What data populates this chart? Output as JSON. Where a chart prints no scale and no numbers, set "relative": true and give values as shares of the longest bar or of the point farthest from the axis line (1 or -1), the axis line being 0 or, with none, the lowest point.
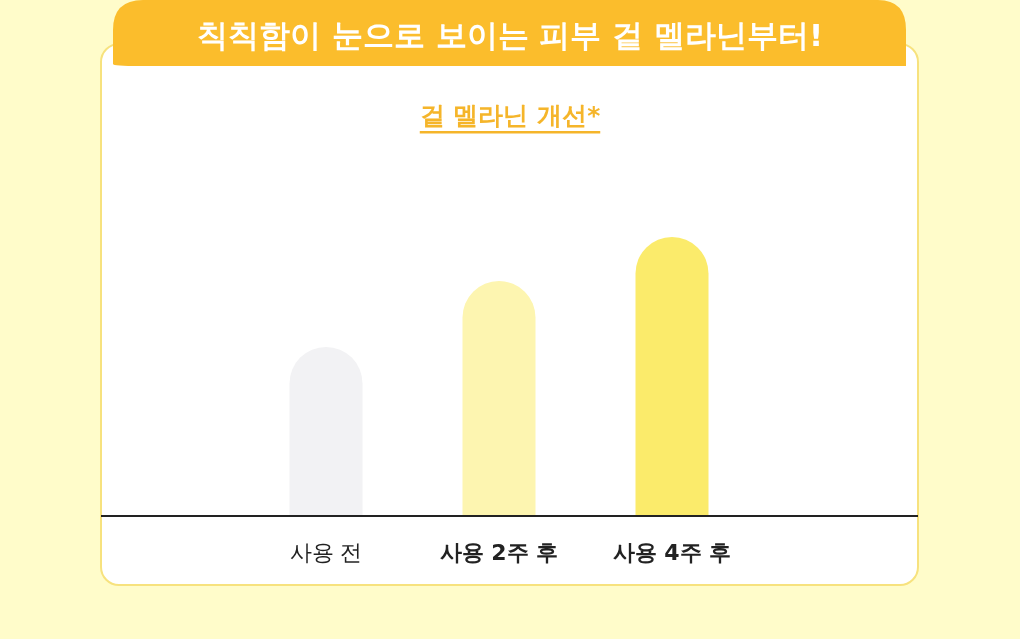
{
  "chart_data": {
    "type": "bar",
    "title": "칙칙함이 눈으로 보이는 피부 겉 멜라닌부터!",
    "subtitle": "겉 멜라닌 개선*",
    "categories": [
      "사용 전",
      "사용 2주 후",
      "사용 4주 후"
    ],
    "values": [
      0.606,
      0.842,
      1
    ],
    "colors": [
      "#f2f2f4",
      "#fdf5b0",
      "#fbeb6b"
    ],
    "relative": true
  }
}
